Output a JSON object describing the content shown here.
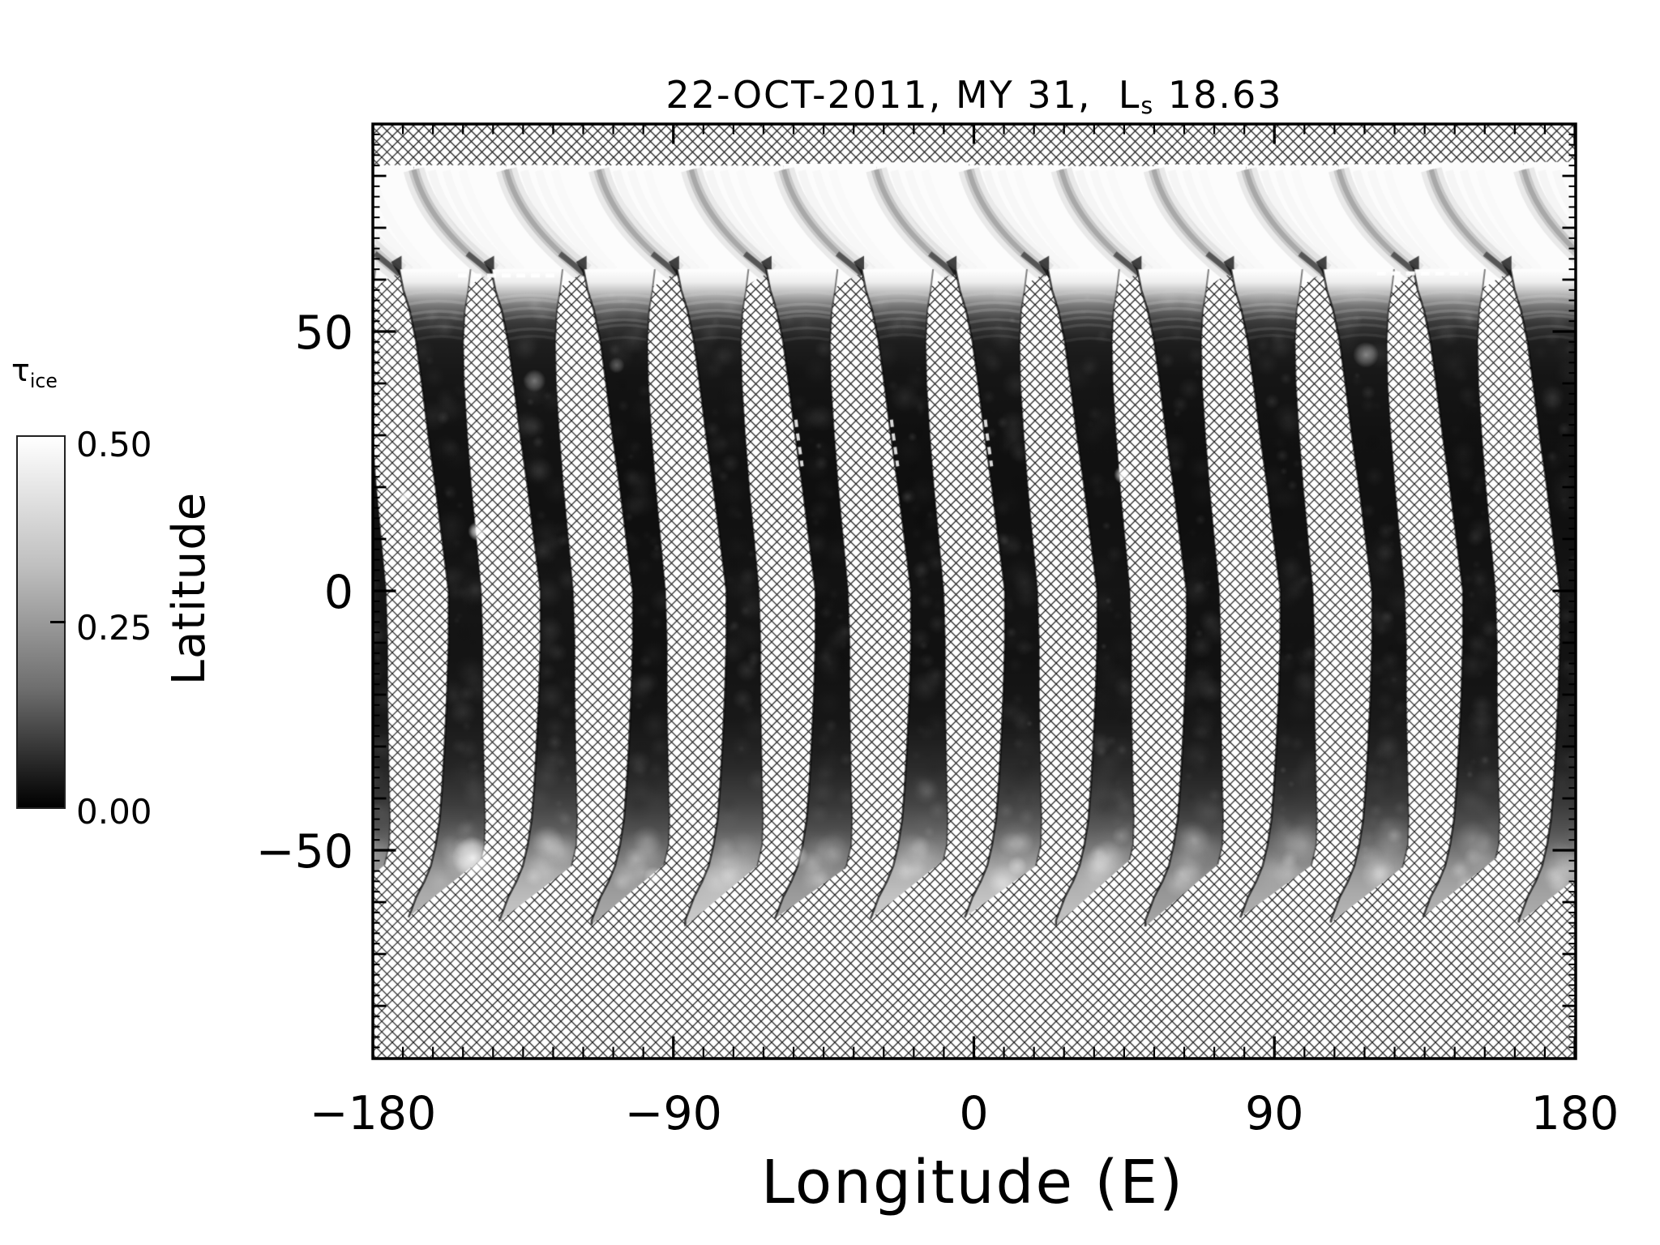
{
  "palette": {
    "background": "#ffffff",
    "ink": "#000000",
    "no_data_hatch": "#000000"
  },
  "title": {
    "prefix": "22-OCT-2011, MY 31,  L",
    "subscript": "s",
    "value": " 18.63"
  },
  "colorbar": {
    "symbol": "τ",
    "subscript": "ice",
    "tick_labels": [
      "0.50",
      "0.25",
      "0.00"
    ],
    "min": 0.0,
    "max": 0.5,
    "orientation": "vertical",
    "top_is_max": true
  },
  "axes": {
    "x": {
      "label": "Longitude (E)",
      "range": [
        -180,
        180
      ],
      "ticks": [
        -180,
        -90,
        0,
        90,
        180
      ],
      "tick_labels": [
        "−180",
        "−90",
        "0",
        "90",
        "180"
      ],
      "minor_step_deg": 9
    },
    "y": {
      "label": "Latitude",
      "range": [
        -90,
        90
      ],
      "ticks": [
        50,
        0,
        -50
      ],
      "tick_labels": [
        "50",
        "0",
        "−50"
      ],
      "medium_step_deg": 10,
      "minor_step_deg": 2
    }
  },
  "chart_data": {
    "type": "heatmap",
    "title": "22-OCT-2011, MY 31, Ls 18.63",
    "xlabel": "Longitude (E)",
    "ylabel": "Latitude",
    "xlim": [
      -180,
      180
    ],
    "ylim": [
      -90,
      90
    ],
    "value_label": "tau_ice",
    "value_range": [
      0.0,
      0.5
    ],
    "legend_position": "left",
    "grid": false,
    "no_data_fill": "crosshatch",
    "swath_center_longitudes": [
      -180.4,
      -152.7,
      -125.0,
      -97.3,
      -69.6,
      -41.9,
      -14.2,
      13.5,
      41.2,
      68.9,
      96.6,
      124.3,
      152.0,
      179.7
    ],
    "swath_spacing_deg": 27.7,
    "data_latitude_range": [
      -63,
      82.5
    ],
    "north_polar_hood": {
      "lat_range": [
        59,
        82.5
      ],
      "tau": 0.5,
      "appearance": "bright white band of overlapping swath fans"
    },
    "mid_latitude_tau": 0.03,
    "south_edge_tau": 0.25,
    "bright_spots": [
      {
        "lon": -170.3,
        "lat": 18.3,
        "r": 9,
        "a": 0.75
      },
      {
        "lon": -148.6,
        "lat": 11.5,
        "r": 12,
        "a": 0.9
      },
      {
        "lon": -150.0,
        "lat": -51.5,
        "r": 26,
        "a": 0.85
      },
      {
        "lon": -131.6,
        "lat": 40.5,
        "r": 14,
        "a": 0.4
      },
      {
        "lon": -107.0,
        "lat": 43.5,
        "r": 10,
        "a": 0.3
      },
      {
        "lon": 44.6,
        "lat": 22.4,
        "r": 11,
        "a": 0.85
      },
      {
        "lon": 117.4,
        "lat": 45.5,
        "r": 16,
        "a": 0.45
      },
      {
        "lon": -53.0,
        "lat": -51.0,
        "r": 14,
        "a": 0.5
      },
      {
        "lon": 13.0,
        "lat": -53.0,
        "r": 12,
        "a": 0.4
      },
      {
        "lon": -96.0,
        "lat": -55.0,
        "r": 12,
        "a": 0.45
      }
    ],
    "artifact_dashes": [
      {
        "lon_start": -154.5,
        "lon_end": -125.4,
        "lat": 60.8
      },
      {
        "lon_start": 120.7,
        "lon_end": 148.0,
        "lat": 61.2
      }
    ],
    "edge_dash_swaths": [
      5,
      6,
      7
    ],
    "edge_dash_lat_range": [
      24,
      33
    ]
  }
}
